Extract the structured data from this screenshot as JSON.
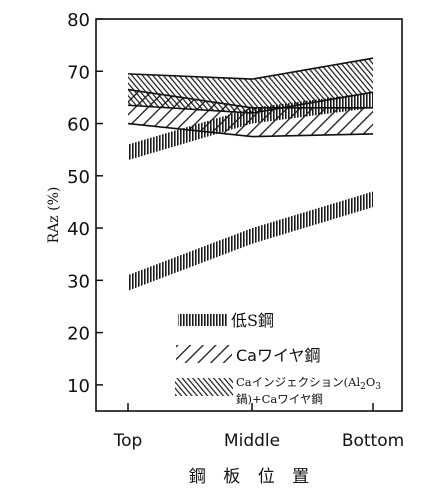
{
  "chart_data": {
    "type": "area",
    "title": "",
    "xlabel": "鋼 板 位 置",
    "ylabel": "RAz (%)",
    "categories": [
      "Top",
      "Middle",
      "Bottom"
    ],
    "ylim": [
      5,
      80
    ],
    "yticks": [
      "80",
      "70",
      "60",
      "50",
      "40",
      "30",
      "20",
      "10"
    ],
    "grid": false,
    "legend_position": "bottom-right",
    "series": [
      {
        "name": "低S鋼",
        "pattern": "vertical-hatch",
        "lower": [
          28,
          37,
          44
        ],
        "upper": [
          31,
          40,
          47
        ]
      },
      {
        "name": "低S鋼",
        "pattern": "vertical-hatch",
        "lower": [
          53,
          60,
          63
        ],
        "upper": [
          56,
          63,
          66
        ]
      },
      {
        "name": "Caワイヤ鋼",
        "pattern": "backslash-hatch",
        "lower": [
          60,
          57.5,
          58
        ],
        "upper": [
          66.5,
          63,
          63
        ]
      },
      {
        "name": "Caインジェクション(Al2O3鍋)+Caワイヤ鋼",
        "pattern": "slash-hatch",
        "lower": [
          63.5,
          62,
          66
        ],
        "upper": [
          69.5,
          68.5,
          72.5
        ]
      }
    ]
  },
  "legend": {
    "item1": "低S鋼",
    "item2": "Caワイヤ鋼",
    "item3_line1_a": "Caインジェクション(Al",
    "item3_line1_sub": "2",
    "item3_line1_b": "O",
    "item3_line1_sub2": "3",
    "item3_line2": "鍋)+Caワイヤ鋼"
  }
}
